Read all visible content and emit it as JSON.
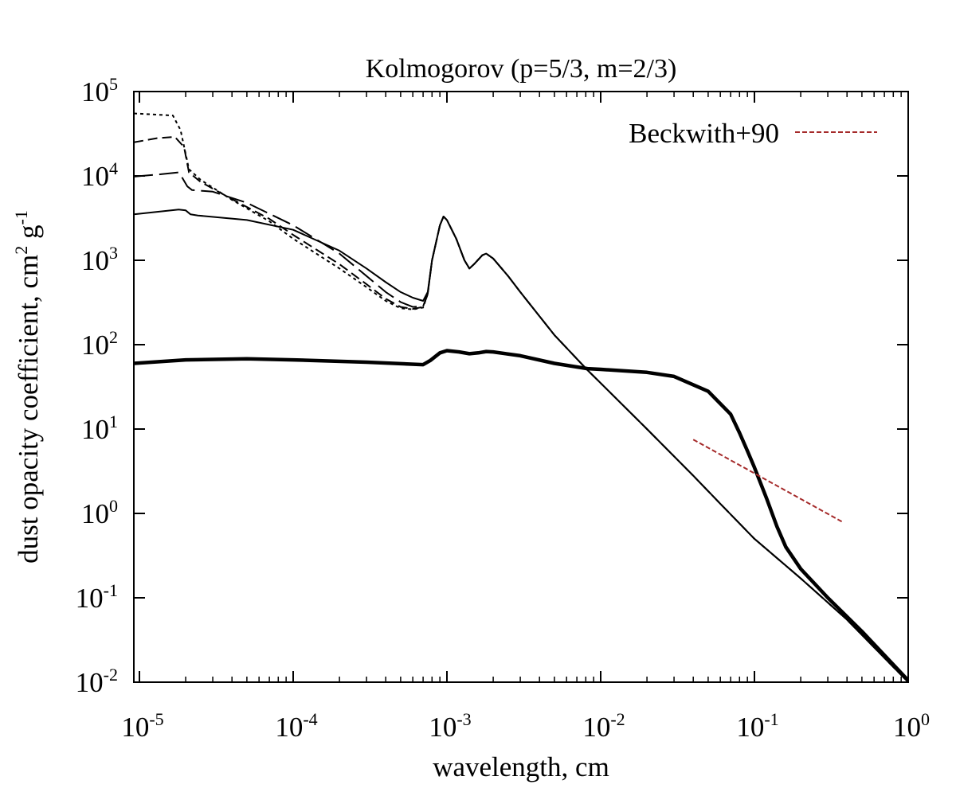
{
  "chart_data": {
    "type": "line",
    "title": "Kolmogorov (p=5/3, m=2/3)",
    "xlabel": "wavelength, cm",
    "ylabel": {
      "prefix": "dust opacity coefficient, cm",
      "exp1": "2",
      "mid": " g",
      "exp2": "-1"
    },
    "xscale": "log",
    "yscale": "log",
    "xlim": [
      9.2e-06,
      1
    ],
    "ylim": [
      0.01,
      100000
    ],
    "xticks": [
      {
        "value": 1e-05,
        "base": "10",
        "exp": "-5"
      },
      {
        "value": 0.0001,
        "base": "10",
        "exp": "-4"
      },
      {
        "value": 0.001,
        "base": "10",
        "exp": "-3"
      },
      {
        "value": 0.01,
        "base": "10",
        "exp": "-2"
      },
      {
        "value": 0.1,
        "base": "10",
        "exp": "-1"
      },
      {
        "value": 1,
        "base": "10",
        "exp": "0"
      }
    ],
    "yticks": [
      {
        "value": 0.01,
        "base": "10",
        "exp": "-2"
      },
      {
        "value": 0.1,
        "base": "10",
        "exp": "-1"
      },
      {
        "value": 1,
        "base": "10",
        "exp": "0"
      },
      {
        "value": 10,
        "base": "10",
        "exp": "1"
      },
      {
        "value": 100,
        "base": "10",
        "exp": "2"
      },
      {
        "value": 1000,
        "base": "10",
        "exp": "3"
      },
      {
        "value": 10000,
        "base": "10",
        "exp": "4"
      },
      {
        "value": 100000,
        "base": "10",
        "exp": "5"
      }
    ],
    "grid": false,
    "legend": {
      "position": "top-right",
      "entries": [
        "Beckwith+90"
      ]
    },
    "series": [
      {
        "name": "short-dotted",
        "style": "short-dash",
        "color": "#000000",
        "points": [
          [
            9.2e-06,
            55000
          ],
          [
            1.65e-05,
            52000
          ],
          [
            1.85e-05,
            35000
          ],
          [
            2.1e-05,
            12000
          ],
          [
            2.5e-05,
            9000
          ],
          [
            4e-05,
            5200
          ],
          [
            7e-05,
            2900
          ],
          [
            0.0001,
            1800
          ],
          [
            0.0002,
            800
          ],
          [
            0.0003,
            480
          ],
          [
            0.0004,
            330
          ],
          [
            0.0005,
            270
          ],
          [
            0.0006,
            262
          ],
          [
            0.0007,
            275
          ],
          [
            0.00075,
            400
          ],
          [
            0.0008,
            1000
          ],
          [
            0.0009,
            2600
          ],
          [
            0.00095,
            3300
          ],
          [
            0.001,
            3000
          ],
          [
            0.00115,
            1800
          ],
          [
            0.0013,
            1000
          ],
          [
            0.0014,
            800
          ],
          [
            0.0015,
            900
          ],
          [
            0.0017,
            1150
          ],
          [
            0.0018,
            1200
          ],
          [
            0.002,
            1050
          ],
          [
            0.0025,
            650
          ],
          [
            0.003,
            420
          ],
          [
            0.005,
            130
          ],
          [
            0.0082,
            50
          ],
          [
            0.01,
            35
          ],
          [
            0.02,
            10
          ],
          [
            0.04,
            2.8
          ],
          [
            0.06,
            1.3
          ],
          [
            0.1,
            0.5
          ],
          [
            0.2,
            0.17
          ],
          [
            0.4,
            0.055
          ],
          [
            1,
            0.01
          ]
        ]
      },
      {
        "name": "medium-dashed",
        "style": "medium-dash",
        "color": "#000000",
        "points": [
          [
            9.2e-06,
            25000
          ],
          [
            1.3e-05,
            28000
          ],
          [
            1.7e-05,
            29000
          ],
          [
            1.95e-05,
            22000
          ],
          [
            2.1e-05,
            11000
          ],
          [
            2.5e-05,
            8500
          ],
          [
            4e-05,
            5300
          ],
          [
            7e-05,
            3100
          ],
          [
            0.0001,
            2000
          ],
          [
            0.0002,
            900
          ],
          [
            0.0003,
            520
          ],
          [
            0.0004,
            350
          ],
          [
            0.0005,
            280
          ],
          [
            0.0006,
            265
          ],
          [
            0.0007,
            280
          ],
          [
            0.00075,
            400
          ],
          [
            0.0008,
            1000
          ],
          [
            0.0009,
            2600
          ],
          [
            0.00095,
            3300
          ],
          [
            0.001,
            3000
          ],
          [
            0.00115,
            1800
          ],
          [
            0.0013,
            1000
          ],
          [
            0.0014,
            800
          ],
          [
            0.0015,
            900
          ],
          [
            0.0017,
            1150
          ],
          [
            0.0018,
            1200
          ],
          [
            0.002,
            1050
          ],
          [
            0.0025,
            650
          ],
          [
            0.003,
            420
          ],
          [
            0.005,
            130
          ],
          [
            0.0082,
            50
          ],
          [
            0.01,
            35
          ],
          [
            0.02,
            10
          ],
          [
            0.04,
            2.8
          ],
          [
            0.06,
            1.3
          ],
          [
            0.1,
            0.5
          ],
          [
            0.2,
            0.17
          ],
          [
            0.4,
            0.055
          ],
          [
            1,
            0.01
          ]
        ]
      },
      {
        "name": "long-dashed",
        "style": "long-dash",
        "color": "#000000",
        "points": [
          [
            9.2e-06,
            9800
          ],
          [
            1.4e-05,
            10500
          ],
          [
            1.8e-05,
            11000
          ],
          [
            1.9e-05,
            9500
          ],
          [
            2.05e-05,
            7500
          ],
          [
            2.2e-05,
            6800
          ],
          [
            3e-05,
            6500
          ],
          [
            5e-05,
            4800
          ],
          [
            0.0001,
            2600
          ],
          [
            0.0002,
            1200
          ],
          [
            0.0003,
            650
          ],
          [
            0.0004,
            420
          ],
          [
            0.0005,
            320
          ],
          [
            0.0006,
            280
          ],
          [
            0.0007,
            285
          ],
          [
            0.00075,
            400
          ],
          [
            0.0008,
            1000
          ],
          [
            0.0009,
            2600
          ],
          [
            0.00095,
            3300
          ],
          [
            0.001,
            3000
          ],
          [
            0.00115,
            1800
          ],
          [
            0.0013,
            1000
          ],
          [
            0.0014,
            800
          ],
          [
            0.0015,
            900
          ],
          [
            0.0017,
            1150
          ],
          [
            0.0018,
            1200
          ],
          [
            0.002,
            1050
          ],
          [
            0.0025,
            650
          ],
          [
            0.003,
            420
          ],
          [
            0.005,
            130
          ],
          [
            0.0082,
            50
          ],
          [
            0.01,
            35
          ],
          [
            0.02,
            10
          ],
          [
            0.04,
            2.8
          ],
          [
            0.06,
            1.3
          ],
          [
            0.1,
            0.5
          ],
          [
            0.2,
            0.17
          ],
          [
            0.4,
            0.055
          ],
          [
            1,
            0.01
          ]
        ]
      },
      {
        "name": "thin-solid",
        "style": "solid",
        "color": "#000000",
        "points": [
          [
            9.2e-06,
            3500
          ],
          [
            1.4e-05,
            3800
          ],
          [
            1.8e-05,
            4000
          ],
          [
            2e-05,
            3900
          ],
          [
            2.15e-05,
            3500
          ],
          [
            2.4e-05,
            3400
          ],
          [
            5e-05,
            3000
          ],
          [
            0.0001,
            2300
          ],
          [
            0.0002,
            1300
          ],
          [
            0.0003,
            800
          ],
          [
            0.0004,
            550
          ],
          [
            0.0005,
            420
          ],
          [
            0.0006,
            360
          ],
          [
            0.0007,
            330
          ],
          [
            0.00075,
            420
          ],
          [
            0.0008,
            1000
          ],
          [
            0.0009,
            2600
          ],
          [
            0.00095,
            3300
          ],
          [
            0.001,
            3000
          ],
          [
            0.00115,
            1800
          ],
          [
            0.0013,
            1000
          ],
          [
            0.0014,
            800
          ],
          [
            0.0015,
            900
          ],
          [
            0.0017,
            1150
          ],
          [
            0.0018,
            1200
          ],
          [
            0.002,
            1050
          ],
          [
            0.0025,
            650
          ],
          [
            0.003,
            420
          ],
          [
            0.005,
            130
          ],
          [
            0.0082,
            50
          ],
          [
            0.01,
            35
          ],
          [
            0.02,
            10
          ],
          [
            0.04,
            2.8
          ],
          [
            0.06,
            1.3
          ],
          [
            0.1,
            0.5
          ],
          [
            0.2,
            0.17
          ],
          [
            0.4,
            0.055
          ],
          [
            1,
            0.01
          ]
        ]
      },
      {
        "name": "thick-solid",
        "style": "thick-solid",
        "color": "#000000",
        "points": [
          [
            9.2e-06,
            60
          ],
          [
            2e-05,
            66
          ],
          [
            5e-05,
            68
          ],
          [
            0.0001,
            66
          ],
          [
            0.0003,
            62
          ],
          [
            0.0007,
            58
          ],
          [
            0.00078,
            65
          ],
          [
            0.0009,
            80
          ],
          [
            0.001,
            85
          ],
          [
            0.0012,
            82
          ],
          [
            0.0014,
            78
          ],
          [
            0.0016,
            80
          ],
          [
            0.0018,
            83
          ],
          [
            0.002,
            82
          ],
          [
            0.003,
            74
          ],
          [
            0.005,
            60
          ],
          [
            0.0082,
            52
          ],
          [
            0.01,
            51
          ],
          [
            0.02,
            47
          ],
          [
            0.03,
            42
          ],
          [
            0.05,
            28
          ],
          [
            0.07,
            15
          ],
          [
            0.08,
            9
          ],
          [
            0.09,
            5.5
          ],
          [
            0.1,
            3.5
          ],
          [
            0.12,
            1.5
          ],
          [
            0.14,
            0.7
          ],
          [
            0.16,
            0.4
          ],
          [
            0.2,
            0.22
          ],
          [
            0.3,
            0.1
          ],
          [
            0.5,
            0.04
          ],
          [
            1,
            0.0105
          ]
        ]
      },
      {
        "name": "Beckwith+90",
        "style": "dotted",
        "color": "#a52a2a",
        "points": [
          [
            0.04,
            7.5
          ],
          [
            0.37,
            0.8
          ]
        ]
      }
    ]
  }
}
